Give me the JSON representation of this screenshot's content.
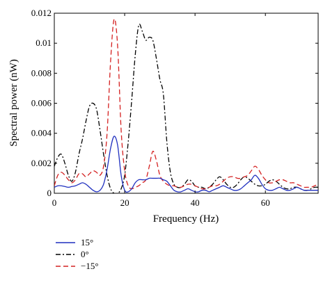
{
  "chart_data": {
    "type": "line",
    "xlabel": "Frequency (Hz)",
    "ylabel": "Spectral power (nW)",
    "xlim": [
      0,
      75
    ],
    "ylim": [
      0,
      0.012
    ],
    "xticks": [
      0,
      20,
      40,
      60
    ],
    "xtick_labels": [
      "0",
      "20",
      "40",
      "60"
    ],
    "yticks": [
      0,
      0.002,
      0.004,
      0.006,
      0.008,
      0.01,
      0.012
    ],
    "ytick_labels": [
      "0",
      "0.002",
      "0.004",
      "0.006",
      "0.008",
      "0.01",
      "0.012"
    ],
    "grid": false,
    "legend_placement": "below-left",
    "series": [
      {
        "name": "15°",
        "color": "#1f2fbf",
        "dash": "solid",
        "x": [
          0,
          1,
          2,
          3,
          4,
          5,
          6,
          7,
          8,
          9,
          10,
          11,
          12,
          13,
          14,
          15,
          16,
          17,
          18,
          19,
          20,
          21,
          22,
          23,
          24,
          25,
          26,
          27,
          28,
          29,
          30,
          31,
          32,
          33,
          34,
          35,
          36,
          37,
          38,
          39,
          40,
          41,
          42,
          43,
          44,
          45,
          46,
          47,
          48,
          49,
          50,
          51,
          52,
          53,
          54,
          55,
          56,
          57,
          58,
          59,
          60,
          61,
          62,
          63,
          64,
          65,
          66,
          67,
          68,
          69,
          70,
          71,
          72,
          73,
          74,
          75
        ],
        "y": [
          0.0004,
          0.0005,
          0.0005,
          0.00045,
          0.0004,
          0.00045,
          0.0005,
          0.0006,
          0.0007,
          0.0006,
          0.0004,
          0.0002,
          0.0001,
          0.0002,
          0.0006,
          0.0016,
          0.003,
          0.0038,
          0.0032,
          0.0012,
          0.0002,
          0.0001,
          0.0003,
          0.0007,
          0.0009,
          0.0009,
          0.0009,
          0.001,
          0.001,
          0.001,
          0.001,
          0.0009,
          0.0008,
          0.0005,
          0.0002,
          0.0001,
          0.0001,
          0.0002,
          0.0003,
          0.0002,
          0.0001,
          0.0001,
          0.0002,
          0.0002,
          0.0001,
          0.0002,
          0.0003,
          0.0004,
          0.0005,
          0.0004,
          0.0003,
          0.0002,
          0.0002,
          0.0003,
          0.0005,
          0.0007,
          0.0009,
          0.0012,
          0.001,
          0.0006,
          0.0003,
          0.0002,
          0.0002,
          0.0003,
          0.0004,
          0.0003,
          0.0002,
          0.0002,
          0.0003,
          0.0004,
          0.0003,
          0.0002,
          0.0002,
          0.0002,
          0.0002,
          0.0002
        ]
      },
      {
        "name": "0°",
        "color": "#000000",
        "dash": "dashdot",
        "x": [
          0,
          1,
          2,
          3,
          4,
          5,
          6,
          7,
          8,
          9,
          10,
          11,
          12,
          13,
          14,
          15,
          16,
          17,
          18,
          19,
          20,
          21,
          22,
          23,
          24,
          25,
          26,
          27,
          28,
          29,
          30,
          31,
          32,
          33,
          34,
          35,
          36,
          37,
          38,
          39,
          40,
          41,
          42,
          43,
          44,
          45,
          46,
          47,
          48,
          49,
          50,
          51,
          52,
          53,
          54,
          55,
          56,
          57,
          58,
          59,
          60,
          61,
          62,
          63,
          64,
          65,
          66,
          67,
          68,
          69,
          70,
          71,
          72,
          73,
          74,
          75
        ],
        "y": [
          0.0018,
          0.0024,
          0.0026,
          0.002,
          0.0012,
          0.0008,
          0.0014,
          0.0026,
          0.0036,
          0.0048,
          0.0058,
          0.006,
          0.0056,
          0.0042,
          0.0026,
          0.0012,
          0.0003,
          0.0,
          0.0,
          0.0003,
          0.0012,
          0.0034,
          0.0062,
          0.0092,
          0.0112,
          0.0108,
          0.0102,
          0.0104,
          0.0102,
          0.009,
          0.0076,
          0.0066,
          0.0034,
          0.0014,
          0.0006,
          0.0004,
          0.0004,
          0.0006,
          0.0009,
          0.0008,
          0.0005,
          0.0004,
          0.0004,
          0.0003,
          0.0004,
          0.0006,
          0.0009,
          0.0011,
          0.0009,
          0.0006,
          0.0004,
          0.0004,
          0.0006,
          0.0009,
          0.0011,
          0.001,
          0.0008,
          0.0006,
          0.0005,
          0.0005,
          0.0006,
          0.0008,
          0.0009,
          0.0008,
          0.0006,
          0.0004,
          0.0003,
          0.0003,
          0.0004,
          0.0004,
          0.0003,
          0.0002,
          0.0002,
          0.0003,
          0.0004,
          0.0004
        ]
      },
      {
        "name": "−15°",
        "color": "#d42020",
        "dash": "dashed",
        "x": [
          0,
          1,
          2,
          3,
          4,
          5,
          6,
          7,
          8,
          9,
          10,
          11,
          12,
          13,
          14,
          15,
          16,
          17,
          18,
          19,
          20,
          21,
          22,
          23,
          24,
          25,
          26,
          27,
          28,
          29,
          30,
          31,
          32,
          33,
          34,
          35,
          36,
          37,
          38,
          39,
          40,
          41,
          42,
          43,
          44,
          45,
          46,
          47,
          48,
          49,
          50,
          51,
          52,
          53,
          54,
          55,
          56,
          57,
          58,
          59,
          60,
          61,
          62,
          63,
          64,
          65,
          66,
          67,
          68,
          69,
          70,
          71,
          72,
          73,
          74,
          75
        ],
        "y": [
          0.0005,
          0.0012,
          0.0014,
          0.0012,
          0.0009,
          0.0007,
          0.0009,
          0.0013,
          0.0013,
          0.0011,
          0.0013,
          0.0015,
          0.0014,
          0.0012,
          0.0018,
          0.004,
          0.0088,
          0.0116,
          0.0098,
          0.0042,
          0.0015,
          0.0005,
          0.0003,
          0.0004,
          0.0005,
          0.0007,
          0.0009,
          0.0018,
          0.0028,
          0.0022,
          0.0012,
          0.0008,
          0.0006,
          0.0005,
          0.0005,
          0.0004,
          0.0004,
          0.0005,
          0.0006,
          0.0006,
          0.0005,
          0.0004,
          0.0003,
          0.0003,
          0.0004,
          0.0005,
          0.0005,
          0.0006,
          0.0008,
          0.001,
          0.0011,
          0.0011,
          0.001,
          0.001,
          0.0011,
          0.0012,
          0.0015,
          0.0018,
          0.0016,
          0.0012,
          0.0009,
          0.0007,
          0.0007,
          0.0008,
          0.0009,
          0.0009,
          0.0008,
          0.0007,
          0.0007,
          0.0006,
          0.0005,
          0.0004,
          0.0004,
          0.0004,
          0.0005,
          0.0006
        ]
      }
    ]
  }
}
